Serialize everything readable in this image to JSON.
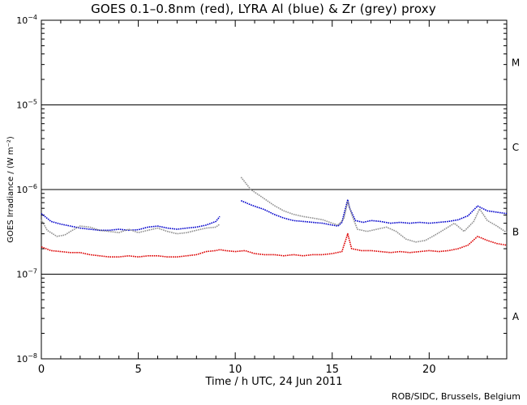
{
  "chart_data": {
    "type": "line",
    "title": "GOES 0.1–0.8nm (red), LYRA Al (blue) & Zr (grey) proxy",
    "xlabel": "Time / h UTC, 24 Jun 2011",
    "ylabel": "GOES Irradiance / (W m⁻²)",
    "credit": "ROB/SIDC, Brussels, Belgium",
    "xlim": [
      0,
      24
    ],
    "ylim": [
      1e-08,
      0.0001
    ],
    "yscale": "log",
    "x_ticks": [
      0,
      5,
      10,
      15,
      20
    ],
    "x_tick_labels": [
      "0",
      "5",
      "10",
      "15",
      "20"
    ],
    "y_ticks": [
      1e-08,
      1e-07,
      1e-06,
      1e-05,
      0.0001
    ],
    "y_tick_labels": [
      {
        "base": "10",
        "exp": "−8"
      },
      {
        "base": "10",
        "exp": "−7"
      },
      {
        "base": "10",
        "exp": "−6"
      },
      {
        "base": "10",
        "exp": "−5"
      },
      {
        "base": "10",
        "exp": "−4"
      }
    ],
    "class_lines": [
      1e-07,
      1e-06,
      1e-05
    ],
    "flare_classes": [
      {
        "label": "A",
        "y": 3.2e-08
      },
      {
        "label": "B",
        "y": 3.2e-07
      },
      {
        "label": "C",
        "y": 3.2e-06
      },
      {
        "label": "M",
        "y": 3.2e-05
      }
    ],
    "series": [
      {
        "name": "LYRA Al",
        "color": "#0000cc",
        "points": [
          [
            0,
            5.2e-07
          ],
          [
            0.5,
            4.2e-07
          ],
          [
            1,
            3.9e-07
          ],
          [
            1.5,
            3.7e-07
          ],
          [
            2,
            3.5e-07
          ],
          [
            2.5,
            3.4e-07
          ],
          [
            3,
            3.3e-07
          ],
          [
            3.5,
            3.3e-07
          ],
          [
            4,
            3.4e-07
          ],
          [
            4.5,
            3.3e-07
          ],
          [
            5,
            3.35e-07
          ],
          [
            5.5,
            3.6e-07
          ],
          [
            6,
            3.7e-07
          ],
          [
            6.5,
            3.5e-07
          ],
          [
            7,
            3.4e-07
          ],
          [
            7.5,
            3.5e-07
          ],
          [
            8,
            3.6e-07
          ],
          [
            8.5,
            3.8e-07
          ],
          [
            9,
            4.2e-07
          ],
          [
            9.2,
            4.8e-07
          ],
          null,
          [
            10.3,
            7.4e-07
          ],
          [
            10.8,
            6.6e-07
          ],
          [
            11.5,
            5.8e-07
          ],
          [
            12,
            5.1e-07
          ],
          [
            12.5,
            4.6e-07
          ],
          [
            13,
            4.3e-07
          ],
          [
            13.5,
            4.2e-07
          ],
          [
            14,
            4.1e-07
          ],
          [
            14.5,
            4e-07
          ],
          [
            15,
            3.8e-07
          ],
          [
            15.3,
            3.7e-07
          ],
          [
            15.5,
            4.1e-07
          ],
          [
            15.7,
            6.2e-07
          ],
          [
            15.8,
            7.6e-07
          ],
          [
            15.9,
            6e-07
          ],
          [
            16.2,
            4.3e-07
          ],
          [
            16.6,
            4.1e-07
          ],
          [
            17,
            4.3e-07
          ],
          [
            17.5,
            4.2e-07
          ],
          [
            18,
            4e-07
          ],
          [
            18.5,
            4.1e-07
          ],
          [
            19,
            4e-07
          ],
          [
            19.5,
            4.1e-07
          ],
          [
            20,
            4e-07
          ],
          [
            20.5,
            4.1e-07
          ],
          [
            21,
            4.2e-07
          ],
          [
            21.5,
            4.4e-07
          ],
          [
            22,
            4.9e-07
          ],
          [
            22.5,
            6.4e-07
          ],
          [
            23,
            5.6e-07
          ],
          [
            23.5,
            5.4e-07
          ],
          [
            24,
            5.2e-07
          ]
        ]
      },
      {
        "name": "LYRA Zr",
        "color": "#909090",
        "points": [
          [
            0,
            4.4e-07
          ],
          [
            0.3,
            3.3e-07
          ],
          [
            0.8,
            2.8e-07
          ],
          [
            1.2,
            2.9e-07
          ],
          [
            1.6,
            3.3e-07
          ],
          [
            2,
            3.7e-07
          ],
          [
            2.5,
            3.6e-07
          ],
          [
            3,
            3.3e-07
          ],
          [
            3.5,
            3.2e-07
          ],
          [
            4,
            3.1e-07
          ],
          [
            4.5,
            3.4e-07
          ],
          [
            5,
            3.1e-07
          ],
          [
            5.5,
            3.3e-07
          ],
          [
            6,
            3.5e-07
          ],
          [
            6.5,
            3.2e-07
          ],
          [
            7,
            3e-07
          ],
          [
            7.5,
            3.1e-07
          ],
          [
            8,
            3.3e-07
          ],
          [
            8.5,
            3.5e-07
          ],
          [
            9,
            3.6e-07
          ],
          [
            9.2,
            3.9e-07
          ],
          null,
          [
            10.3,
            1.4e-06
          ],
          [
            10.8,
            1e-06
          ],
          [
            11.5,
            7.8e-07
          ],
          [
            12,
            6.5e-07
          ],
          [
            12.5,
            5.6e-07
          ],
          [
            13,
            5.1e-07
          ],
          [
            13.5,
            4.8e-07
          ],
          [
            14,
            4.6e-07
          ],
          [
            14.5,
            4.4e-07
          ],
          [
            15,
            4e-07
          ],
          [
            15.3,
            3.8e-07
          ],
          [
            15.6,
            4.5e-07
          ],
          [
            15.8,
            7.2e-07
          ],
          [
            16,
            5.1e-07
          ],
          [
            16.3,
            3.4e-07
          ],
          [
            16.8,
            3.2e-07
          ],
          [
            17.3,
            3.4e-07
          ],
          [
            17.8,
            3.6e-07
          ],
          [
            18.3,
            3.2e-07
          ],
          [
            18.8,
            2.6e-07
          ],
          [
            19.3,
            2.4e-07
          ],
          [
            19.8,
            2.5e-07
          ],
          [
            20.3,
            2.9e-07
          ],
          [
            20.8,
            3.4e-07
          ],
          [
            21.3,
            4e-07
          ],
          [
            21.8,
            3.2e-07
          ],
          [
            22.3,
            4.2e-07
          ],
          [
            22.6,
            5.9e-07
          ],
          [
            23,
            4.3e-07
          ],
          [
            23.5,
            3.7e-07
          ],
          [
            24,
            3.1e-07
          ]
        ]
      },
      {
        "name": "GOES 0.1–0.8nm",
        "color": "#dd0000",
        "points": [
          [
            0,
            2.1e-07
          ],
          [
            0.5,
            1.9e-07
          ],
          [
            1,
            1.85e-07
          ],
          [
            1.5,
            1.8e-07
          ],
          [
            2,
            1.8e-07
          ],
          [
            2.5,
            1.7e-07
          ],
          [
            3,
            1.65e-07
          ],
          [
            3.5,
            1.6e-07
          ],
          [
            4,
            1.6e-07
          ],
          [
            4.5,
            1.65e-07
          ],
          [
            5,
            1.6e-07
          ],
          [
            5.5,
            1.65e-07
          ],
          [
            6,
            1.65e-07
          ],
          [
            6.5,
            1.6e-07
          ],
          [
            7,
            1.6e-07
          ],
          [
            7.5,
            1.65e-07
          ],
          [
            8,
            1.7e-07
          ],
          [
            8.5,
            1.85e-07
          ],
          [
            9,
            1.9e-07
          ],
          [
            9.2,
            1.95e-07
          ],
          [
            9.5,
            1.9e-07
          ],
          [
            10,
            1.85e-07
          ],
          [
            10.5,
            1.9e-07
          ],
          [
            11,
            1.75e-07
          ],
          [
            11.5,
            1.7e-07
          ],
          [
            12,
            1.7e-07
          ],
          [
            12.5,
            1.65e-07
          ],
          [
            13,
            1.7e-07
          ],
          [
            13.5,
            1.65e-07
          ],
          [
            14,
            1.7e-07
          ],
          [
            14.5,
            1.7e-07
          ],
          [
            15,
            1.75e-07
          ],
          [
            15.5,
            1.85e-07
          ],
          [
            15.8,
            3e-07
          ],
          [
            16,
            2e-07
          ],
          [
            16.5,
            1.9e-07
          ],
          [
            17,
            1.9e-07
          ],
          [
            17.5,
            1.85e-07
          ],
          [
            18,
            1.8e-07
          ],
          [
            18.5,
            1.85e-07
          ],
          [
            19,
            1.8e-07
          ],
          [
            19.5,
            1.85e-07
          ],
          [
            20,
            1.9e-07
          ],
          [
            20.5,
            1.85e-07
          ],
          [
            21,
            1.9e-07
          ],
          [
            21.5,
            2e-07
          ],
          [
            22,
            2.2e-07
          ],
          [
            22.5,
            2.8e-07
          ],
          [
            23,
            2.5e-07
          ],
          [
            23.5,
            2.3e-07
          ],
          [
            24,
            2.2e-07
          ]
        ]
      }
    ]
  }
}
